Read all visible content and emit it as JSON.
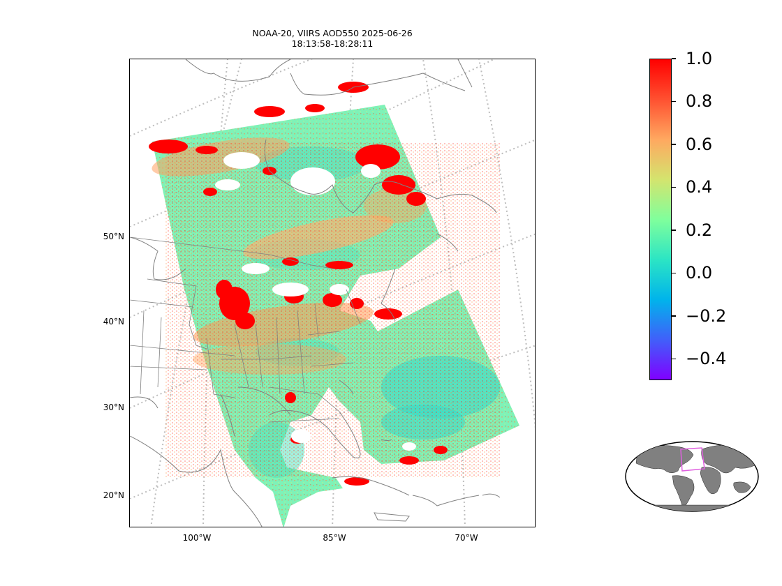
{
  "title": {
    "line1": "NOAA-20, VIIRS AOD550 2025-06-26",
    "line2": "18:13:58-18:28:11"
  },
  "map": {
    "projection": "lambert-conformal",
    "graticule": "dotted-gray",
    "lat_labels": [
      "50°N",
      "40°N",
      "30°N",
      "20°N"
    ],
    "lon_labels": [
      "100°W",
      "85°W",
      "70°W"
    ],
    "coastline_color": "#808080"
  },
  "colorbar": {
    "colormap": "rainbow",
    "range": [
      -0.5,
      1.0
    ],
    "ticks": [
      {
        "label": "1.0",
        "value": 1.0
      },
      {
        "label": "0.8",
        "value": 0.8
      },
      {
        "label": "0.6",
        "value": 0.6
      },
      {
        "label": "0.4",
        "value": 0.4
      },
      {
        "label": "0.2",
        "value": 0.2
      },
      {
        "label": "0.0",
        "value": 0.0
      },
      {
        "label": "−0.2",
        "value": -0.2
      },
      {
        "label": "−0.4",
        "value": -0.4
      }
    ],
    "colors": [
      "#8000ff",
      "#4060fa",
      "#00b4eb",
      "#2ce5c4",
      "#80ff9c",
      "#d4e46e",
      "#ffa860",
      "#ff5030",
      "#ff0000"
    ]
  },
  "inset": {
    "type": "global-locator-map",
    "land_color": "#808080",
    "box_color": "#e060e0"
  }
}
